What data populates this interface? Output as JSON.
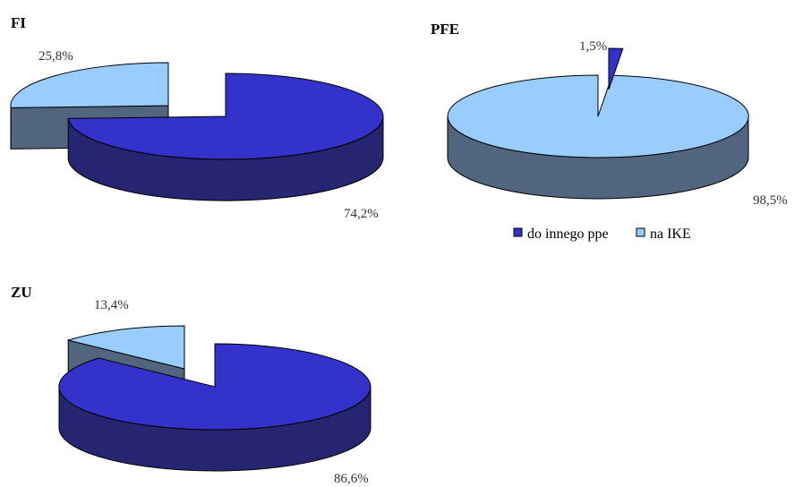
{
  "legend": [
    {
      "label": "do innego ppe",
      "color": "#3333cc"
    },
    {
      "label": "na IKE",
      "color": "#99ccff"
    }
  ],
  "colors": {
    "outline": "#000000",
    "side_dark": "#252571",
    "side_light": "#52657f"
  },
  "chart_data": [
    {
      "type": "pie",
      "title": "FI",
      "style": "3d-exploded",
      "slices": [
        {
          "label": "do innego ppe",
          "value": 74.2,
          "display": "74,2%"
        },
        {
          "label": "na IKE",
          "value": 25.8,
          "display": "25,8%"
        }
      ]
    },
    {
      "type": "pie",
      "title": "PFE",
      "style": "3d-exploded",
      "slices": [
        {
          "label": "do innego ppe",
          "value": 1.5,
          "display": "1,5%"
        },
        {
          "label": "na IKE",
          "value": 98.5,
          "display": "98,5%"
        }
      ]
    },
    {
      "type": "pie",
      "title": "ZU",
      "style": "3d-exploded",
      "slices": [
        {
          "label": "do innego ppe",
          "value": 86.6,
          "display": "86,6%"
        },
        {
          "label": "na IKE",
          "value": 13.4,
          "display": "13,4%"
        }
      ]
    }
  ]
}
